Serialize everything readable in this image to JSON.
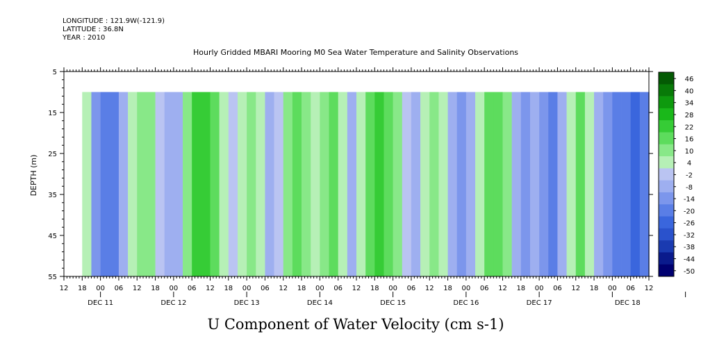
{
  "header": {
    "longitude": "LONGITUDE : 121.9W(-121.9)",
    "latitude": "LATITUDE : 36.8N",
    "year": "YEAR : 2010"
  },
  "chart_data": {
    "type": "heatmap",
    "title": "Hourly Gridded MBARI Mooring M0 Sea Water Temperature and Salinity Observations",
    "bottom_title": "U Component of Water Velocity (cm s-1)",
    "ylabel": "DEPTH (m)",
    "y_ticks": [
      "5",
      "15",
      "25",
      "35",
      "45",
      "55"
    ],
    "y_tick_values": [
      5,
      15,
      25,
      35,
      45,
      55
    ],
    "ylim": [
      5,
      55
    ],
    "y_inverted": true,
    "data_depth_range": [
      10,
      55
    ],
    "hour_ticks": [
      "12",
      "18",
      "00",
      "06",
      "12",
      "18",
      "00",
      "06",
      "12",
      "18",
      "00",
      "06",
      "12",
      "18",
      "00",
      "06",
      "12",
      "18",
      "00",
      "06",
      "12",
      "18",
      "00",
      "06",
      "12",
      "18",
      "00",
      "06",
      "12",
      "18",
      "00",
      "06",
      "12"
    ],
    "date_labels": [
      "DEC 11",
      "DEC 12",
      "DEC 13",
      "DEC 14",
      "DEC 15",
      "DEC 16",
      "DEC 17",
      "DEC 18"
    ],
    "x_range_hours": [
      0,
      192
    ],
    "data_start_hour": 6,
    "colorbar_labels": [
      "46",
      "40",
      "34",
      "28",
      "22",
      "16",
      "10",
      "4",
      "-2",
      "-8",
      "-14",
      "-20",
      "-26",
      "-32",
      "-38",
      "-44",
      "-50"
    ],
    "colorbar_range": [
      -50,
      52
    ],
    "bands_hour_value": [
      [
        6,
        4
      ],
      [
        9,
        -10
      ],
      [
        12,
        -18
      ],
      [
        15,
        -20
      ],
      [
        18,
        -8
      ],
      [
        21,
        8
      ],
      [
        24,
        14
      ],
      [
        27,
        10
      ],
      [
        30,
        2
      ],
      [
        33,
        -8
      ],
      [
        36,
        -4
      ],
      [
        39,
        10
      ],
      [
        42,
        22
      ],
      [
        45,
        26
      ],
      [
        48,
        16
      ],
      [
        51,
        8
      ],
      [
        54,
        -2
      ],
      [
        57,
        4
      ],
      [
        60,
        12
      ],
      [
        63,
        6
      ],
      [
        66,
        -6
      ],
      [
        69,
        -2
      ],
      [
        72,
        10
      ],
      [
        75,
        18
      ],
      [
        78,
        12
      ],
      [
        81,
        8
      ],
      [
        84,
        14
      ],
      [
        87,
        18
      ],
      [
        90,
        8
      ],
      [
        93,
        -4
      ],
      [
        96,
        6
      ],
      [
        99,
        16
      ],
      [
        102,
        22
      ],
      [
        105,
        18
      ],
      [
        108,
        10
      ],
      [
        111,
        -2
      ],
      [
        114,
        -8
      ],
      [
        117,
        4
      ],
      [
        120,
        14
      ],
      [
        123,
        8
      ],
      [
        126,
        -6
      ],
      [
        129,
        -14
      ],
      [
        132,
        -8
      ],
      [
        135,
        6
      ],
      [
        138,
        16
      ],
      [
        141,
        20
      ],
      [
        144,
        12
      ],
      [
        147,
        -4
      ],
      [
        150,
        -12
      ],
      [
        153,
        -8
      ],
      [
        156,
        -14
      ],
      [
        159,
        -20
      ],
      [
        162,
        -8
      ],
      [
        165,
        4
      ],
      [
        168,
        18
      ],
      [
        171,
        8
      ],
      [
        174,
        -4
      ],
      [
        177,
        -12
      ],
      [
        180,
        -16
      ],
      [
        183,
        -20
      ],
      [
        186,
        -22
      ],
      [
        189,
        -18
      ],
      [
        192,
        -10
      ]
    ],
    "colormap": [
      "#000070",
      "#0a1a8c",
      "#1a3ab0",
      "#2a52cc",
      "#3a66dd",
      "#5a7ee6",
      "#7c96ec",
      "#9eaff0",
      "#bac4f2",
      "#b6f0b6",
      "#88e888",
      "#5ddc5d",
      "#36cc36",
      "#1ab81a",
      "#0e9a0e",
      "#087a08",
      "#045a04"
    ]
  }
}
